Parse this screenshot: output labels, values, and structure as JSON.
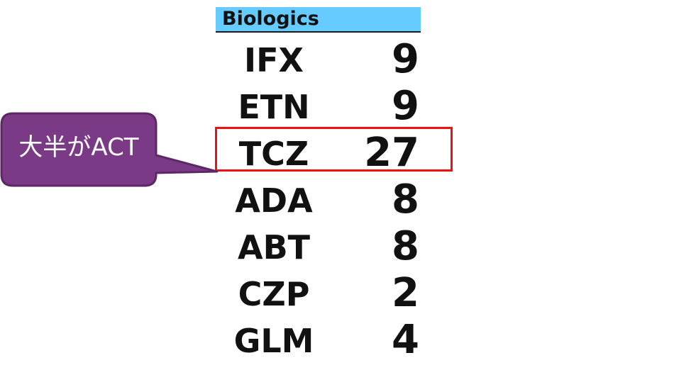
{
  "table": {
    "header": "Biologics",
    "rows": [
      {
        "name": "IFX",
        "count": "9"
      },
      {
        "name": "ETN",
        "count": "9"
      },
      {
        "name": "TCZ",
        "count": "27"
      },
      {
        "name": "ADA",
        "count": "8"
      },
      {
        "name": "ABT",
        "count": "8"
      },
      {
        "name": "CZP",
        "count": "2"
      },
      {
        "name": "GLM",
        "count": "4"
      }
    ]
  },
  "callout": {
    "text": "大半がACT",
    "fill_color": "#7b3a86",
    "border_color": "#5e2766"
  },
  "highlight": {
    "row": "TCZ",
    "color": "#ee1111"
  },
  "colors": {
    "header_bg": "#66ccff",
    "text": "#111111"
  }
}
